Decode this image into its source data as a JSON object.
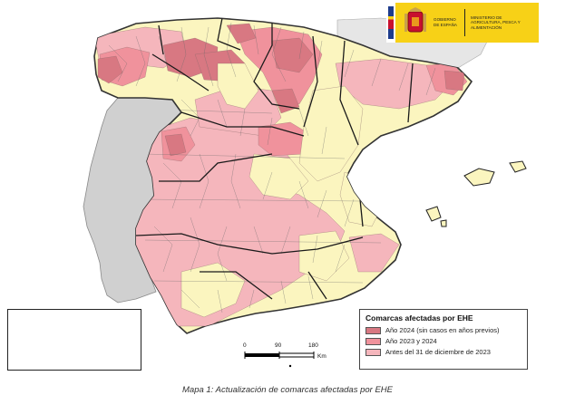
{
  "map": {
    "colors": {
      "year_2024": "#d87882",
      "years_2023_2024": "#f0929c",
      "before_2023": "#f5b6bc",
      "unaffected": "#fbf5bf",
      "portugal": "#d0d0d0"
    }
  },
  "header": {
    "logo": {
      "left_text": "GOBIERNO DE ESPAÑA",
      "right_text": "MINISTERIO DE AGRICULTURA, PESCA Y ALIMENTACIÓN"
    }
  },
  "legend": {
    "title": "Comarcas afectadas por EHE",
    "items": [
      {
        "label": "Año 2024 (sin casos en años previos)",
        "color": "#d87882"
      },
      {
        "label": "Año 2023 y 2024",
        "color": "#f0929c"
      },
      {
        "label": "Antes del 31 de diciembre de 2023",
        "color": "#f5b6bc"
      }
    ]
  },
  "scale_bar": {
    "ticks": [
      "0",
      "90",
      "180"
    ],
    "unit": "Km"
  },
  "caption": "Mapa 1: Actualización de comarcas afectadas por EHE"
}
